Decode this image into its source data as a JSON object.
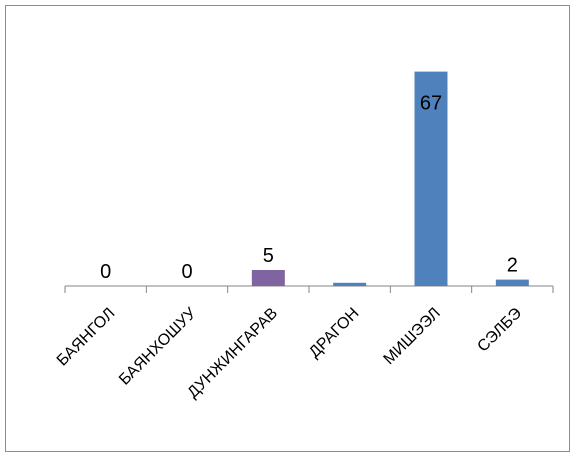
{
  "chart_data": {
    "type": "bar",
    "title": "",
    "xlabel": "",
    "ylabel": "",
    "categories": [
      "БАЯНГОЛ",
      "БАЯНХОШУУ",
      "ДУНЖИНГАРАВ",
      "ДРАГОН",
      "МИШЭЭЛ",
      "СЭЛБЭ"
    ],
    "values": [
      0,
      0,
      5,
      1,
      67,
      2
    ],
    "data_labels": [
      "0",
      "0",
      "5",
      "",
      "67",
      "2"
    ],
    "bar_colors": [
      "#4f81bd",
      "#4f81bd",
      "#8064a2",
      "#4f81bd",
      "#4f81bd",
      "#4f81bd"
    ],
    "ylim": [
      0,
      70
    ],
    "grid": false,
    "legend": "none"
  }
}
